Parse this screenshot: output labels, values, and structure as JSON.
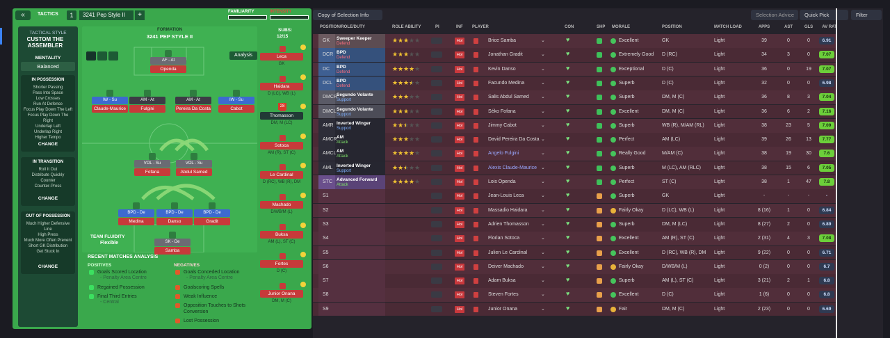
{
  "tactics": {
    "back": "«",
    "tab": "TACTICS",
    "slot": "1",
    "name": "3241 Pep Style II",
    "add": "+",
    "familiarity": "FAMILIARITY",
    "intensity": "INTENSITY",
    "style_label": "TACTICAL STYLE",
    "style_name": "CUSTOM THE ASSEMBLER",
    "mentality_label": "MENTALITY",
    "mentality": "Balanced",
    "phases": [
      {
        "title": "IN POSSESSION",
        "items": [
          "Shorter Passing",
          "Pass Into Space",
          "Low Crosses",
          "Run At Defence",
          "Focus Play Down The Left",
          "Focus Play Down The Right",
          "Underlap Left",
          "Underlap Right",
          "Higher Tempo"
        ],
        "change": "CHANGE"
      },
      {
        "title": "IN TRANSITION",
        "items": [
          "Roll It Out",
          "Distribute Quickly",
          "Counter",
          "Counter-Press"
        ],
        "change": "CHANGE"
      },
      {
        "title": "OUT OF POSSESSION",
        "items": [
          "Much Higher Defensive Line",
          "High Press",
          "Much More Often Prevent Short GK Distribution",
          "Get Stuck In"
        ],
        "change": "CHANGE"
      }
    ],
    "formation_label": "FORMATION",
    "formation": "3241 PEP STYLE II",
    "analysis_button": "Analysis",
    "subs_label": "SUBS:",
    "subs": "12/15",
    "pitch": [
      {
        "role": "AF - At",
        "name": "Openda"
      },
      {
        "role": "IW - Su",
        "name": "Claude-Maurice"
      },
      {
        "role": "AM - At",
        "name": "Fulgini"
      },
      {
        "role": "AM - At",
        "name": "Pereira Da Costa"
      },
      {
        "role": "IW - Su",
        "name": "Cabot"
      },
      {
        "role": "VOL - Su",
        "name": "Fofana"
      },
      {
        "role": "VOL - Su",
        "name": "Abdul Samed"
      },
      {
        "role": "BPD - De",
        "name": "Medina"
      },
      {
        "role": "BPD - De",
        "name": "Danso"
      },
      {
        "role": "BPD - De",
        "name": "Gradit"
      },
      {
        "role": "SK - De",
        "name": "Samba"
      }
    ],
    "fluidity_label": "TEAM FLUIDITY",
    "fluidity": "Flexible",
    "bench": [
      {
        "name": "Leca",
        "pos": "GK"
      },
      {
        "name": "Haidara",
        "pos": "D (LC), WB (L)"
      },
      {
        "name": "Thomasson",
        "pos": "DM, M (LC)",
        "badge": "28"
      },
      {
        "name": "Sotoca",
        "pos": "AM (R), ST (C)"
      },
      {
        "name": "Le Cardinal",
        "pos": "D (RC), WB (R), DM"
      },
      {
        "name": "Machado",
        "pos": "D/WB/M (L)"
      },
      {
        "name": "Buksa",
        "pos": "AM (L), ST (C)"
      },
      {
        "name": "Fortes",
        "pos": "D (C)"
      },
      {
        "name": "Junior Onana",
        "pos": "DM, M (C)"
      }
    ],
    "recent": {
      "title": "RECENT MATCHES ANALYSIS",
      "positives_label": "POSITIVES",
      "positives": [
        {
          "text": "Goals Scored Location",
          "sub": "- Penalty Area Centre"
        },
        {
          "text": "Regained Possession"
        },
        {
          "text": "Final Third Entries",
          "sub": "- Central"
        }
      ],
      "negatives_label": "NEGATIVES",
      "negatives": [
        {
          "text": "Goals Conceded Location",
          "sub": "- Penalty Area Centre"
        },
        {
          "text": "Goalscoring Spells"
        },
        {
          "text": "Weak Influence"
        },
        {
          "text": "Opposition Touches to Shots Conversion"
        },
        {
          "text": "Lost Possession"
        }
      ]
    }
  },
  "toolbar": {
    "copy": "Copy of Selection Info",
    "advice": "Selection Advice",
    "quick": "Quick Pick",
    "filter": "Filter"
  },
  "table": {
    "columns": [
      "POSITION/ROLE/DUTY",
      "ROLE ABILITY",
      "PI",
      "INF",
      "PLAYER",
      "CON",
      "SHP",
      "MORALE",
      "POSITION",
      "MATCH LOAD",
      "APPS",
      "AST",
      "GLS",
      "AV RAT"
    ],
    "inf": "Hol",
    "rows": [
      {
        "pos": "GK",
        "role": "Sweeper Keeper",
        "duty": "Defend",
        "ability": 3,
        "player": "Brice Samba",
        "morale": "Excellent",
        "position": "GK",
        "load": "Light",
        "apps": 39,
        "ast": 0,
        "gls": 0,
        "rat": 6.91
      },
      {
        "pos": "DCR",
        "role": "BPD",
        "duty": "Defend",
        "ability": 3,
        "player": "Jonathan Gradit",
        "morale": "Extremely Good",
        "position": "D (RC)",
        "load": "Light",
        "apps": 34,
        "ast": 3,
        "gls": 0,
        "rat": 7.07
      },
      {
        "pos": "DC",
        "role": "BPD",
        "duty": "Defend",
        "ability": 4,
        "player": "Kevin Danso",
        "morale": "Exceptional",
        "position": "D (C)",
        "load": "Light",
        "apps": 36,
        "ast": 0,
        "gls": 19,
        "rat": 7.07
      },
      {
        "pos": "DCL",
        "role": "BPD",
        "duty": "Defend",
        "ability": 3.5,
        "player": "Facundo Medina",
        "morale": "Superb",
        "position": "D (C)",
        "load": "Light",
        "apps": 32,
        "ast": 0,
        "gls": 0,
        "rat": 6.98
      },
      {
        "pos": "DMCR",
        "role": "Segundo Volante",
        "duty": "Support",
        "ability": 3,
        "player": "Salis Abdul Samed",
        "morale": "Superb",
        "position": "DM, M (C)",
        "load": "Light",
        "apps": 36,
        "ast": 8,
        "gls": 3,
        "rat": 7.04
      },
      {
        "pos": "DMCL",
        "role": "Segundo Volante",
        "duty": "Support",
        "ability": 3,
        "player": "Séko Fofana",
        "morale": "Excellent",
        "position": "DM, M (C)",
        "load": "Light",
        "apps": 36,
        "ast": 6,
        "gls": 2,
        "rat": 7.16
      },
      {
        "pos": "AMR",
        "role": "Inverted Winger",
        "duty": "Support",
        "ability": 2.5,
        "player": "Jimmy Cabot",
        "morale": "Superb",
        "position": "WB (R), M/AM (RL)",
        "load": "Light",
        "apps": 38,
        "ast": 23,
        "gls": 5,
        "rat": 7.09
      },
      {
        "pos": "AMCR",
        "role": "AM",
        "duty": "Attack",
        "ability": 3,
        "player": "David Pereira Da Costa",
        "morale": "Perfect",
        "position": "AM (LC)",
        "load": "Light",
        "apps": 39,
        "ast": 26,
        "gls": 13,
        "rat": 7.77
      },
      {
        "pos": "AMCL",
        "role": "AM",
        "duty": "Attack",
        "ability": 4,
        "player": "Angelo Fulgini",
        "morale": "Really Good",
        "position": "M/AM (C)",
        "load": "Light",
        "apps": 38,
        "ast": 19,
        "gls": 30,
        "rat": 7.6
      },
      {
        "pos": "AML",
        "role": "Inverted Winger",
        "duty": "Support",
        "ability": 2.5,
        "player": "Alexis Claude-Maurice",
        "morale": "Superb",
        "position": "M (LC), AM (RLC)",
        "load": "Light",
        "apps": 38,
        "ast": 15,
        "gls": 6,
        "rat": 7.05
      },
      {
        "pos": "STC",
        "role": "Advanced Forward",
        "duty": "Attack",
        "ability": 4,
        "player": "Lois Openda",
        "morale": "Perfect",
        "position": "ST (C)",
        "load": "Light",
        "apps": 38,
        "ast": 1,
        "gls": 47,
        "rat": 7.8
      },
      {
        "pos": "S1",
        "player": "Jean-Louis Leca",
        "morale": "Superb",
        "position": "GK",
        "load": "Light",
        "apps": "-",
        "ast": "-",
        "gls": "-",
        "rat": "-"
      },
      {
        "pos": "S2",
        "player": "Massadio Haidara",
        "morale": "Fairly Okay",
        "position": "D (LC), WB (L)",
        "load": "Light",
        "apps": "8 (16)",
        "ast": 1,
        "gls": 0,
        "rat": 6.84
      },
      {
        "pos": "S3",
        "player": "Adrien Thomasson",
        "morale": "Superb",
        "position": "DM, M (LC)",
        "load": "Light",
        "apps": "8 (27)",
        "ast": 2,
        "gls": 0,
        "rat": 6.89
      },
      {
        "pos": "S4",
        "player": "Florian Sotoca",
        "morale": "Excellent",
        "position": "AM (R), ST (C)",
        "load": "Light",
        "apps": "2 (31)",
        "ast": 4,
        "gls": 3,
        "rat": 7.08
      },
      {
        "pos": "S5",
        "player": "Julien Le Cardinal",
        "morale": "Excellent",
        "position": "D (RC), WB (R), DM",
        "load": "Light",
        "apps": "9 (22)",
        "ast": 0,
        "gls": 0,
        "rat": 6.71
      },
      {
        "pos": "S6",
        "player": "Deiver Machado",
        "morale": "Fairly Okay",
        "position": "D/WB/M (L)",
        "load": "Light",
        "apps": "0 (2)",
        "ast": 0,
        "gls": 0,
        "rat": 6.7
      },
      {
        "pos": "S7",
        "player": "Adam Buksa",
        "morale": "Superb",
        "position": "AM (L), ST (C)",
        "load": "Light",
        "apps": "3 (21)",
        "ast": 2,
        "gls": 1,
        "rat": 6.8
      },
      {
        "pos": "S8",
        "player": "Steven Fortes",
        "morale": "Excellent",
        "position": "D (C)",
        "load": "Light",
        "apps": "1 (6)",
        "ast": 0,
        "gls": 0,
        "rat": 6.8
      },
      {
        "pos": "S9",
        "player": "Junior Onana",
        "morale": "Fair",
        "position": "DM, M (C)",
        "load": "Light",
        "apps": "2 (23)",
        "ast": 0,
        "gls": 0,
        "rat": 6.69
      }
    ]
  }
}
